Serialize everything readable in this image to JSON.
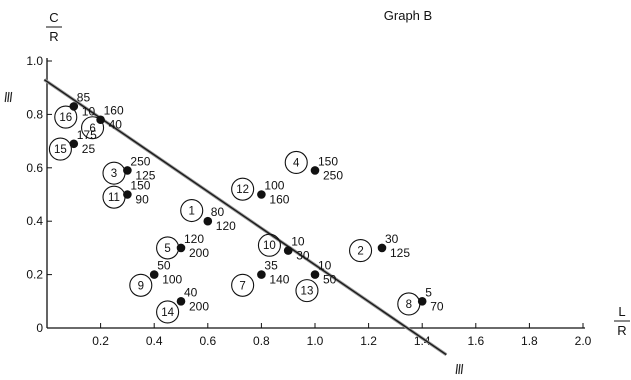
{
  "chart_data": {
    "type": "scatter",
    "title": "Graph B",
    "xlabel": {
      "top": "L",
      "bottom": "R"
    },
    "ylabel": {
      "top": "C",
      "bottom": "R"
    },
    "xlim": [
      0,
      2.0
    ],
    "ylim": [
      0,
      1.0
    ],
    "x_ticks": [
      "0.2",
      "0.4",
      "0.6",
      "0.8",
      "1.0",
      "1.2",
      "1.4",
      "1.6",
      "1.8",
      "2.0"
    ],
    "y_ticks": [
      "0",
      "0.2",
      "0.4",
      "0.6",
      "0.8",
      "1.0"
    ],
    "points": [
      {
        "x": 0.1,
        "y": 0.83,
        "c": 85,
        "l": 10
      },
      {
        "x": 0.2,
        "y": 0.78,
        "c": 160,
        "l": 40
      },
      {
        "x": 0.1,
        "y": 0.69,
        "c": 175,
        "l": 25
      },
      {
        "x": 0.3,
        "y": 0.59,
        "c": 250,
        "l": 125
      },
      {
        "x": 0.3,
        "y": 0.5,
        "c": 150,
        "l": 90
      },
      {
        "x": 1.0,
        "y": 0.59,
        "c": 150,
        "l": 250
      },
      {
        "x": 0.8,
        "y": 0.5,
        "c": 100,
        "l": 160
      },
      {
        "x": 0.6,
        "y": 0.4,
        "c": 80,
        "l": 120
      },
      {
        "x": 0.5,
        "y": 0.3,
        "c": 120,
        "l": 200
      },
      {
        "x": 0.9,
        "y": 0.29,
        "c": 10,
        "l": 30
      },
      {
        "x": 1.25,
        "y": 0.3,
        "c": 30,
        "l": 125
      },
      {
        "x": 0.4,
        "y": 0.2,
        "c": 50,
        "l": 100
      },
      {
        "x": 0.8,
        "y": 0.2,
        "c": 35,
        "l": 140
      },
      {
        "x": 1.0,
        "y": 0.2,
        "c": 10,
        "l": 50
      },
      {
        "x": 0.5,
        "y": 0.1,
        "c": 40,
        "l": 200
      },
      {
        "x": 1.4,
        "y": 0.1,
        "c": 5,
        "l": 70
      }
    ],
    "circled_numbers": [
      {
        "n": "1",
        "x": 0.54,
        "y": 0.44
      },
      {
        "n": "2",
        "x": 1.17,
        "y": 0.29
      },
      {
        "n": "3",
        "x": 0.25,
        "y": 0.58
      },
      {
        "n": "4",
        "x": 0.93,
        "y": 0.62
      },
      {
        "n": "5",
        "x": 0.45,
        "y": 0.3
      },
      {
        "n": "6",
        "x": 0.17,
        "y": 0.75
      },
      {
        "n": "7",
        "x": 0.73,
        "y": 0.16
      },
      {
        "n": "8",
        "x": 1.35,
        "y": 0.09
      },
      {
        "n": "9",
        "x": 0.35,
        "y": 0.16
      },
      {
        "n": "10",
        "x": 0.83,
        "y": 0.31
      },
      {
        "n": "11",
        "x": 0.25,
        "y": 0.49
      },
      {
        "n": "12",
        "x": 0.73,
        "y": 0.52
      },
      {
        "n": "13",
        "x": 0.97,
        "y": 0.14
      },
      {
        "n": "14",
        "x": 0.45,
        "y": 0.06
      },
      {
        "n": "15",
        "x": 0.05,
        "y": 0.67
      },
      {
        "n": "16",
        "x": 0.07,
        "y": 0.79
      }
    ],
    "trend_line": {
      "x1": -0.01,
      "y1": 0.93,
      "x2": 1.49,
      "y2": -0.1,
      "end_label": "II"
    },
    "grid": false,
    "legend": "none"
  }
}
